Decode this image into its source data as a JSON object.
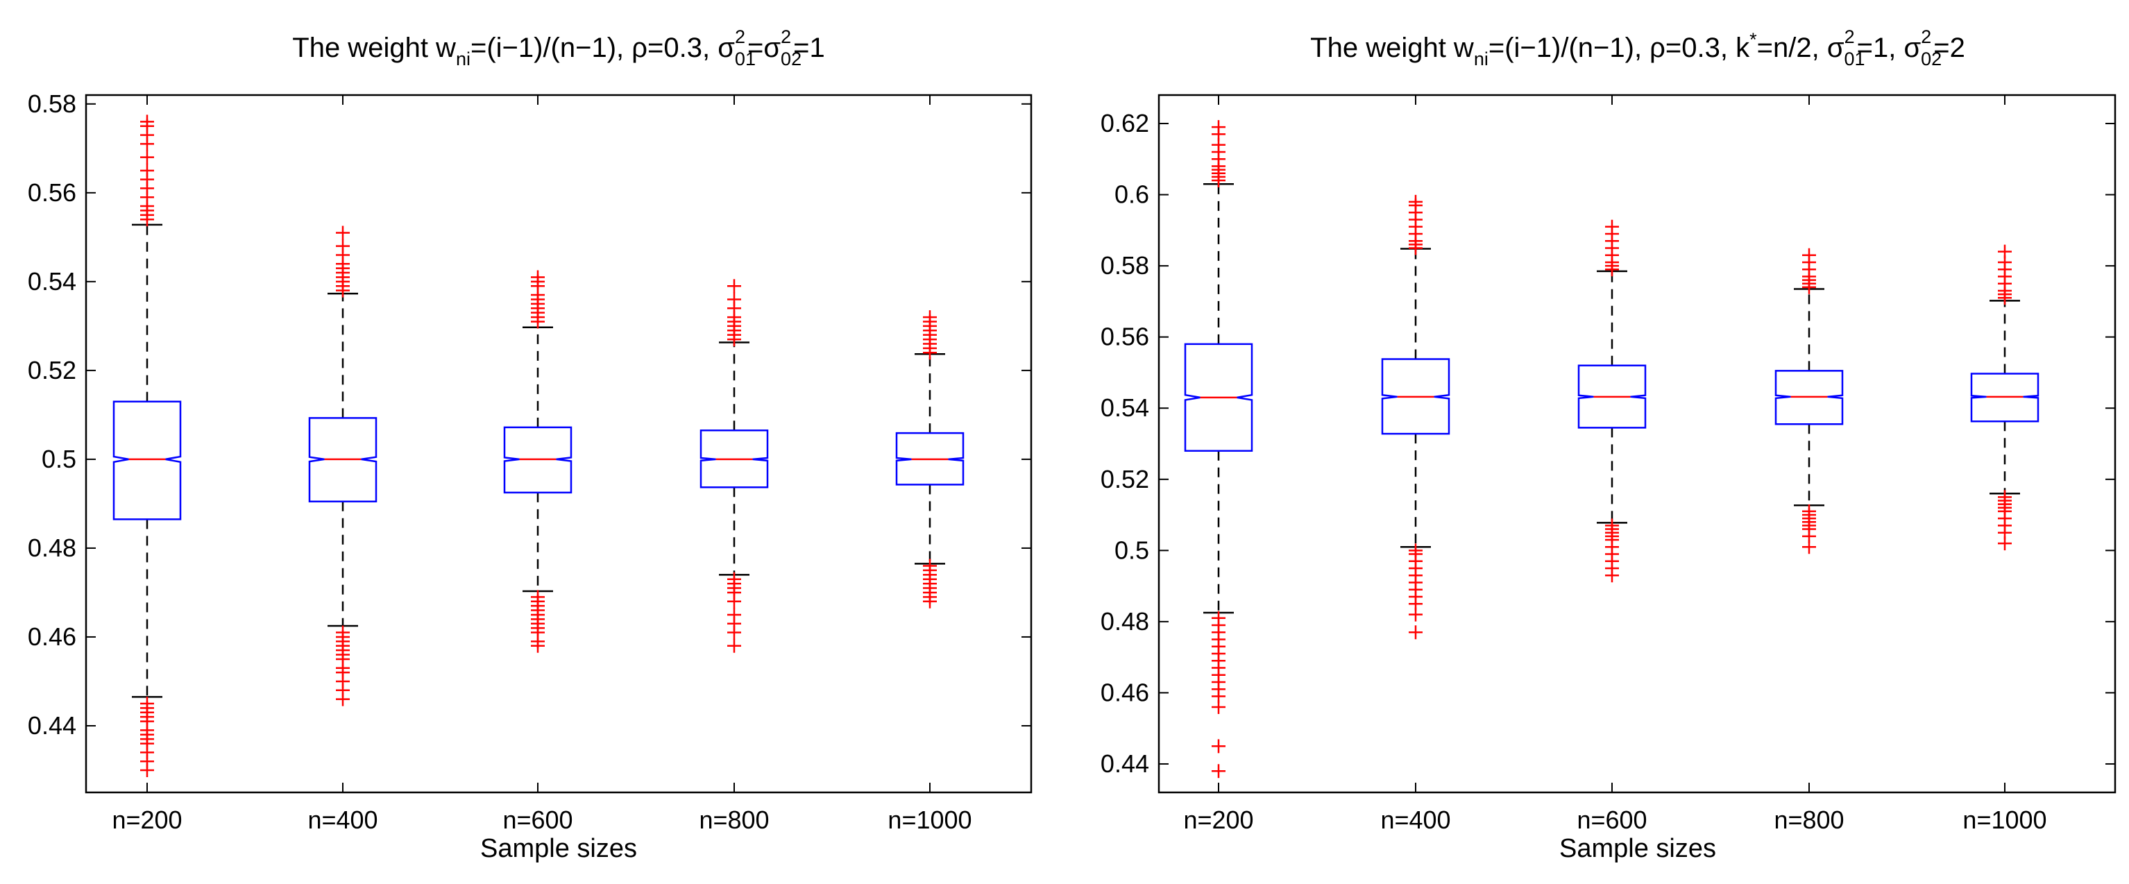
{
  "figure": {
    "colors": {
      "box": "#0000ff",
      "median": "#ff0000",
      "outlier": "#ff0000",
      "whisker": "#000000",
      "axes": "#000000",
      "background": "#ffffff"
    }
  },
  "chart_data": [
    {
      "type": "box",
      "title": {
        "text": "The weight w_ni=(i−1)/(n−1), ρ=0.3, σ_01^2=σ_02^2=1",
        "parts": [
          {
            "t": "The weight w"
          },
          {
            "t": "ni",
            "sub": true
          },
          {
            "t": "=(i−1)/(n−1), ρ=0.3, σ"
          },
          {
            "t": "01",
            "sub": true,
            "sup": "2"
          },
          {
            "t": "=σ"
          },
          {
            "t": "02",
            "sub": true,
            "sup": "2"
          },
          {
            "t": "=1"
          }
        ]
      },
      "xlabel": "Sample sizes",
      "ylabel": "",
      "categories": [
        "n=200",
        "n=400",
        "n=600",
        "n=800",
        "n=1000"
      ],
      "ylim": [
        0.425,
        0.582
      ],
      "yticks": [
        0.44,
        0.46,
        0.48,
        0.5,
        0.52,
        0.54,
        0.56,
        0.58
      ],
      "ytick_labels": [
        "0.44",
        "0.46",
        "0.48",
        "0.5",
        "0.52",
        "0.54",
        "0.56",
        "0.58"
      ],
      "boxes": [
        {
          "category": "n=200",
          "whisker_low": 0.4465,
          "q1": 0.4865,
          "median": 0.5,
          "q3": 0.513,
          "whisker_high": 0.5528,
          "notch_low": 0.4994,
          "notch_high": 0.5006,
          "outliers": [
            0.575,
            0.576,
            0.573,
            0.571,
            0.568,
            0.565,
            0.563,
            0.561,
            0.559,
            0.557,
            0.556,
            0.555,
            0.554,
            0.445,
            0.444,
            0.443,
            0.442,
            0.441,
            0.439,
            0.438,
            0.437,
            0.436,
            0.434,
            0.432,
            0.43
          ]
        },
        {
          "category": "n=400",
          "whisker_low": 0.4625,
          "q1": 0.4905,
          "median": 0.5,
          "q3": 0.5093,
          "whisker_high": 0.5373,
          "notch_low": 0.4995,
          "notch_high": 0.5005,
          "outliers": [
            0.551,
            0.548,
            0.546,
            0.544,
            0.543,
            0.542,
            0.541,
            0.54,
            0.539,
            0.538,
            0.461,
            0.46,
            0.459,
            0.458,
            0.457,
            0.456,
            0.455,
            0.453,
            0.452,
            0.45,
            0.448,
            0.446
          ]
        },
        {
          "category": "n=600",
          "whisker_low": 0.4703,
          "q1": 0.4925,
          "median": 0.5,
          "q3": 0.5072,
          "whisker_high": 0.5297,
          "notch_low": 0.4996,
          "notch_high": 0.5004,
          "outliers": [
            0.541,
            0.54,
            0.539,
            0.537,
            0.536,
            0.535,
            0.534,
            0.533,
            0.532,
            0.531,
            0.469,
            0.468,
            0.467,
            0.466,
            0.465,
            0.464,
            0.463,
            0.462,
            0.461,
            0.459,
            0.458
          ]
        },
        {
          "category": "n=800",
          "whisker_low": 0.474,
          "q1": 0.4937,
          "median": 0.5,
          "q3": 0.5065,
          "whisker_high": 0.5263,
          "notch_low": 0.4997,
          "notch_high": 0.5003,
          "outliers": [
            0.539,
            0.536,
            0.534,
            0.532,
            0.531,
            0.53,
            0.529,
            0.528,
            0.527,
            0.473,
            0.472,
            0.471,
            0.47,
            0.468,
            0.465,
            0.463,
            0.461,
            0.458
          ]
        },
        {
          "category": "n=1000",
          "whisker_low": 0.4765,
          "q1": 0.4943,
          "median": 0.5,
          "q3": 0.5059,
          "whisker_high": 0.5237,
          "notch_low": 0.4997,
          "notch_high": 0.5003,
          "outliers": [
            0.532,
            0.531,
            0.53,
            0.529,
            0.528,
            0.527,
            0.526,
            0.525,
            0.524,
            0.476,
            0.475,
            0.474,
            0.473,
            0.472,
            0.471,
            0.47,
            0.469,
            0.468
          ]
        }
      ]
    },
    {
      "type": "box",
      "title": {
        "text": "The weight w_ni=(i−1)/(n−1), ρ=0.3, k*=n/2, σ_01^2=1, σ_02^2=2",
        "parts": [
          {
            "t": "The weight w"
          },
          {
            "t": "ni",
            "sub": true
          },
          {
            "t": "=(i−1)/(n−1), ρ=0.3, k"
          },
          {
            "t": "*",
            "sup_only": true
          },
          {
            "t": "=n/2, σ"
          },
          {
            "t": "01",
            "sub": true,
            "sup": "2"
          },
          {
            "t": "=1, σ"
          },
          {
            "t": "02",
            "sub": true,
            "sup": "2"
          },
          {
            "t": "=2"
          }
        ]
      },
      "xlabel": "Sample sizes",
      "ylabel": "",
      "categories": [
        "n=200",
        "n=400",
        "n=600",
        "n=800",
        "n=1000"
      ],
      "ylim": [
        0.432,
        0.628
      ],
      "yticks": [
        0.44,
        0.46,
        0.48,
        0.5,
        0.52,
        0.54,
        0.56,
        0.58,
        0.6,
        0.62
      ],
      "ytick_labels": [
        "0.44",
        "0.46",
        "0.48",
        "0.5",
        "0.52",
        "0.54",
        "0.56",
        "0.58",
        "0.6",
        "0.62"
      ],
      "boxes": [
        {
          "category": "n=200",
          "whisker_low": 0.4825,
          "q1": 0.528,
          "median": 0.543,
          "q3": 0.558,
          "whisker_high": 0.603,
          "notch_low": 0.5423,
          "notch_high": 0.5437,
          "outliers": [
            0.619,
            0.617,
            0.614,
            0.612,
            0.61,
            0.608,
            0.607,
            0.606,
            0.605,
            0.604,
            0.481,
            0.479,
            0.477,
            0.475,
            0.473,
            0.471,
            0.469,
            0.467,
            0.465,
            0.463,
            0.461,
            0.459,
            0.456,
            0.445,
            0.438
          ]
        },
        {
          "category": "n=400",
          "whisker_low": 0.501,
          "q1": 0.5328,
          "median": 0.5432,
          "q3": 0.5538,
          "whisker_high": 0.5848,
          "notch_low": 0.5427,
          "notch_high": 0.5437,
          "outliers": [
            0.598,
            0.597,
            0.595,
            0.593,
            0.591,
            0.589,
            0.587,
            0.586,
            0.585,
            0.5,
            0.499,
            0.497,
            0.495,
            0.493,
            0.491,
            0.489,
            0.487,
            0.485,
            0.482,
            0.477
          ]
        },
        {
          "category": "n=600",
          "whisker_low": 0.5078,
          "q1": 0.5345,
          "median": 0.5432,
          "q3": 0.552,
          "whisker_high": 0.5785,
          "notch_low": 0.5428,
          "notch_high": 0.5436,
          "outliers": [
            0.591,
            0.589,
            0.587,
            0.585,
            0.583,
            0.581,
            0.58,
            0.579,
            0.507,
            0.506,
            0.505,
            0.504,
            0.503,
            0.501,
            0.499,
            0.497,
            0.495,
            0.493
          ]
        },
        {
          "category": "n=800",
          "whisker_low": 0.5127,
          "q1": 0.5355,
          "median": 0.5432,
          "q3": 0.5505,
          "whisker_high": 0.5735,
          "notch_low": 0.5428,
          "notch_high": 0.5436,
          "outliers": [
            0.583,
            0.581,
            0.579,
            0.577,
            0.576,
            0.575,
            0.574,
            0.511,
            0.51,
            0.509,
            0.508,
            0.507,
            0.506,
            0.504,
            0.501
          ]
        },
        {
          "category": "n=1000",
          "whisker_low": 0.516,
          "q1": 0.5363,
          "median": 0.5432,
          "q3": 0.5497,
          "whisker_high": 0.5702,
          "notch_low": 0.5429,
          "notch_high": 0.5435,
          "outliers": [
            0.584,
            0.581,
            0.579,
            0.577,
            0.575,
            0.573,
            0.572,
            0.571,
            0.515,
            0.514,
            0.513,
            0.512,
            0.511,
            0.509,
            0.507,
            0.505,
            0.502
          ]
        }
      ]
    }
  ]
}
